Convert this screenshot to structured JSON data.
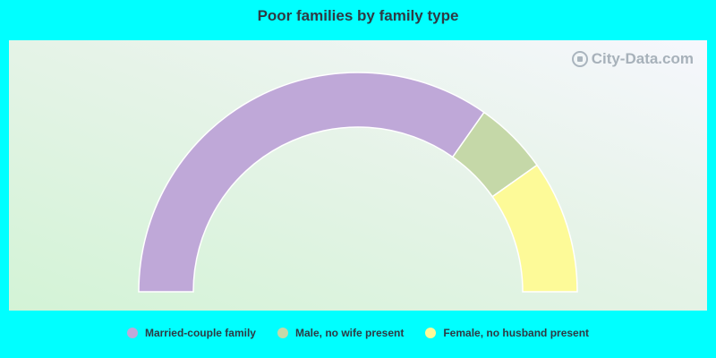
{
  "chart_data": {
    "type": "pie",
    "title": "Poor families by family type",
    "categories": [
      "Married-couple family",
      "Male, no wife present",
      "Female, no husband present"
    ],
    "values": [
      69.5,
      10.9,
      19.6
    ],
    "colors": [
      "#bfa8d8",
      "#c5d8a8",
      "#fdfa98"
    ],
    "legend_position": "bottom"
  },
  "watermark": {
    "text": "City-Data.com",
    "icon": "city-data-logo-icon"
  }
}
